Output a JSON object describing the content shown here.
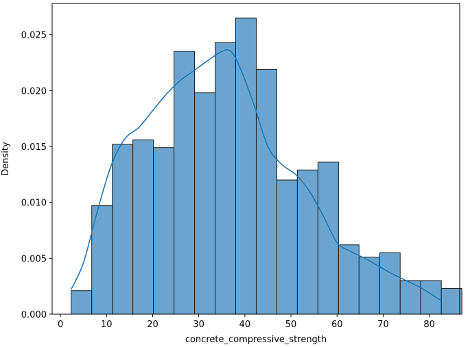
{
  "chart_data": {
    "type": "bar",
    "subtype": "histogram-with-kde",
    "title": "",
    "xlabel": "concrete_compressive_strength",
    "ylabel": "Density",
    "xlim": [
      -1.8,
      86.6
    ],
    "ylim": [
      0,
      0.0278
    ],
    "xticks": [
      0,
      10,
      20,
      30,
      40,
      50,
      60,
      70,
      80
    ],
    "yticks": [
      0.0,
      0.005,
      0.01,
      0.015,
      0.02,
      0.025
    ],
    "ytick_labels": [
      "0.000",
      "0.005",
      "0.010",
      "0.015",
      "0.020",
      "0.025"
    ],
    "grid": false,
    "legend": "none",
    "bins": {
      "start": 2.33,
      "width": 4.46,
      "densities": [
        0.0021,
        0.0097,
        0.0152,
        0.0156,
        0.0149,
        0.0235,
        0.0198,
        0.0243,
        0.0265,
        0.0219,
        0.012,
        0.0129,
        0.0136,
        0.0062,
        0.0051,
        0.0055,
        0.003,
        0.003,
        0.0023
      ]
    },
    "kde": {
      "x": [
        2.3,
        5,
        8,
        11,
        14,
        17,
        20,
        23,
        26,
        29,
        32,
        35,
        37,
        39,
        42,
        45,
        48,
        51,
        54,
        57,
        60,
        63,
        66,
        69,
        72,
        75,
        78,
        80,
        82.6
      ],
      "y": [
        0.0022,
        0.0046,
        0.0092,
        0.0133,
        0.0157,
        0.0167,
        0.0182,
        0.0197,
        0.0209,
        0.0218,
        0.0227,
        0.0235,
        0.0235,
        0.022,
        0.0187,
        0.015,
        0.0134,
        0.0125,
        0.011,
        0.0088,
        0.0064,
        0.0056,
        0.005,
        0.0043,
        0.0036,
        0.003,
        0.0024,
        0.0019,
        0.0012
      ]
    },
    "colors": {
      "bar_fill": "#6BA5CF",
      "bar_edge": "#1a1a1a",
      "kde_line": "#1F77B4",
      "axis": "#000000"
    }
  }
}
